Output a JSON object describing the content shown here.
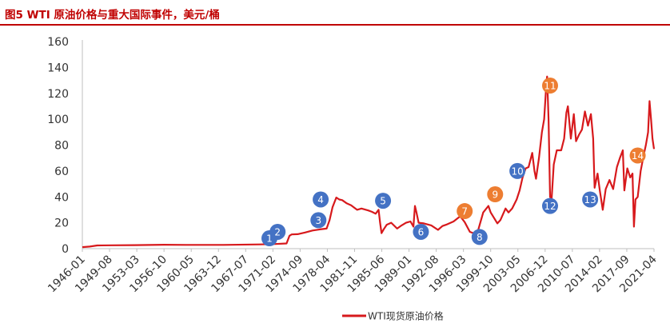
{
  "header": {
    "title": "图5  WTI 原油价格与重大国际事件，美元/桶"
  },
  "chart_data": {
    "type": "line",
    "title": "图5  WTI 原油价格与重大国际事件，美元/桶",
    "xlabel": "",
    "ylabel": "",
    "ylim": [
      0,
      160
    ],
    "yticks": [
      0,
      20,
      40,
      60,
      80,
      100,
      120,
      140,
      160
    ],
    "xticks": [
      "1946-01",
      "1949-08",
      "1953-03",
      "1956-10",
      "1960-05",
      "1963-12",
      "1967-07",
      "1971-02",
      "1974-09",
      "1978-04",
      "1981-11",
      "1985-06",
      "1989-01",
      "1992-08",
      "1996-03",
      "1999-10",
      "2003-05",
      "2006-12",
      "2010-07",
      "2014-02",
      "2017-09",
      "2021-04"
    ],
    "grid": false,
    "legend": "bottom",
    "colors": {
      "line": "#d7191c",
      "marker_blue": "#4472c4",
      "marker_orange": "#ed7d31"
    },
    "series": [
      {
        "name": "WTI现货原油价格",
        "x": [
          1946.0,
          1947.0,
          1948.0,
          1950.0,
          1953.0,
          1957.0,
          1960.0,
          1965.0,
          1970.0,
          1972.0,
          1973.5,
          1973.9,
          1974.2,
          1975.0,
          1976.0,
          1977.0,
          1978.0,
          1978.9,
          1979.3,
          1979.7,
          1980.2,
          1980.6,
          1981.0,
          1981.6,
          1982.2,
          1983.0,
          1983.6,
          1984.5,
          1985.0,
          1985.5,
          1985.9,
          1986.1,
          1986.3,
          1986.6,
          1987.0,
          1987.6,
          1988.4,
          1989.0,
          1989.6,
          1990.2,
          1990.6,
          1990.8,
          1991.0,
          1991.3,
          1992.0,
          1993.0,
          1993.9,
          1994.5,
          1995.0,
          1996.0,
          1996.9,
          1997.5,
          1998.2,
          1998.9,
          1999.2,
          1999.6,
          2000.0,
          2000.7,
          2001.0,
          2001.9,
          2002.3,
          2003.0,
          2003.4,
          2003.9,
          2004.5,
          2004.9,
          2005.3,
          2005.7,
          2006.1,
          2006.6,
          2006.9,
          2007.1,
          2007.5,
          2007.9,
          2008.2,
          2008.5,
          2008.6,
          2008.8,
          2009.0,
          2009.2,
          2009.5,
          2009.9,
          2010.5,
          2010.9,
          2011.2,
          2011.4,
          2011.8,
          2012.2,
          2012.5,
          2012.9,
          2013.3,
          2013.7,
          2014.1,
          2014.5,
          2014.8,
          2015.0,
          2015.4,
          2015.7,
          2016.1,
          2016.5,
          2017.0,
          2017.5,
          2018.0,
          2018.4,
          2018.8,
          2019.0,
          2019.4,
          2019.8,
          2020.1,
          2020.3,
          2020.5,
          2020.8,
          2021.2,
          2021.6,
          2021.9,
          2022.2,
          2022.4,
          2022.6,
          2022.8,
          2023.0
        ],
        "values": [
          1.2,
          1.6,
          2.5,
          2.6,
          2.7,
          3.0,
          2.9,
          2.9,
          3.3,
          3.6,
          4.0,
          10.0,
          11.0,
          11.2,
          12.5,
          14.0,
          14.9,
          15.5,
          22.0,
          32.0,
          39.5,
          38.0,
          37.5,
          35.0,
          33.5,
          30.0,
          31.0,
          29.5,
          28.5,
          27.0,
          30.0,
          20.0,
          12.0,
          15.0,
          18.5,
          20.0,
          15.5,
          18.0,
          20.0,
          21.0,
          17.0,
          33.0,
          28.0,
          20.0,
          19.5,
          18.0,
          14.5,
          17.5,
          18.5,
          21.0,
          25.0,
          20.5,
          13.0,
          11.5,
          12.0,
          20.0,
          28.0,
          33.0,
          28.0,
          19.5,
          22.0,
          31.0,
          28.0,
          31.0,
          38.0,
          45.0,
          55.0,
          62.0,
          63.0,
          74.0,
          60.0,
          54.0,
          70.0,
          90.0,
          100.0,
          128.0,
          133.0,
          100.0,
          40.0,
          38.0,
          65.0,
          76.0,
          76.0,
          85.0,
          105.0,
          110.0,
          85.0,
          104.0,
          83.0,
          88.0,
          92.0,
          106.0,
          95.0,
          104.0,
          85.0,
          47.0,
          58.0,
          45.0,
          30.0,
          46.0,
          53.0,
          46.0,
          63.0,
          70.0,
          76.0,
          45.0,
          62.0,
          55.0,
          58.0,
          17.0,
          38.0,
          40.0,
          60.0,
          72.0,
          80.0,
          90.0,
          114.0,
          100.0,
          85.0,
          77.0
        ]
      }
    ],
    "events": [
      {
        "label": "1",
        "x": 1971.2,
        "y": 8,
        "color": "blue"
      },
      {
        "label": "2",
        "x": 1972.3,
        "y": 13,
        "color": "blue"
      },
      {
        "label": "3",
        "x": 1977.8,
        "y": 22,
        "color": "blue"
      },
      {
        "label": "4",
        "x": 1978.1,
        "y": 38,
        "color": "blue"
      },
      {
        "label": "5",
        "x": 1986.5,
        "y": 37,
        "color": "blue"
      },
      {
        "label": "6",
        "x": 1991.6,
        "y": 13,
        "color": "blue"
      },
      {
        "label": "7",
        "x": 1997.5,
        "y": 29,
        "color": "orange"
      },
      {
        "label": "8",
        "x": 1999.5,
        "y": 9,
        "color": "blue"
      },
      {
        "label": "9",
        "x": 2001.6,
        "y": 42,
        "color": "orange"
      },
      {
        "label": "10",
        "x": 2004.6,
        "y": 60,
        "color": "blue"
      },
      {
        "label": "11",
        "x": 2009.0,
        "y": 126,
        "color": "orange"
      },
      {
        "label": "12",
        "x": 2009.0,
        "y": 33,
        "color": "blue"
      },
      {
        "label": "13",
        "x": 2014.4,
        "y": 38,
        "color": "blue"
      },
      {
        "label": "14",
        "x": 2020.8,
        "y": 72,
        "color": "orange"
      }
    ]
  }
}
